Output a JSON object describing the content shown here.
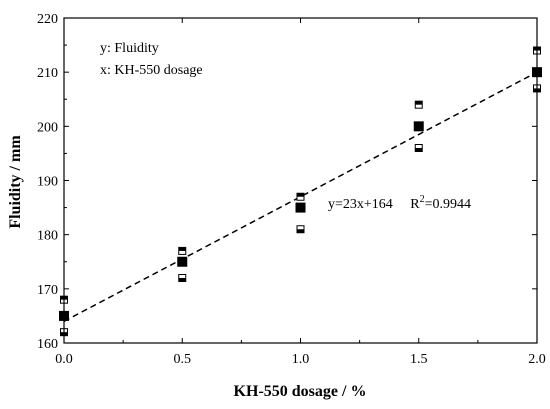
{
  "chart_data": {
    "type": "scatter",
    "title": "",
    "xlabel": "KH-550 dosage / %",
    "ylabel": "Fluidity / mm",
    "xlim": [
      0.0,
      2.0
    ],
    "ylim": [
      160,
      220
    ],
    "x_ticks": [
      "0.0",
      "0.5",
      "1.0",
      "1.5",
      "2.0"
    ],
    "y_ticks": [
      "160",
      "170",
      "180",
      "190",
      "200",
      "210",
      "220"
    ],
    "grid": false,
    "legend_lines": [
      "y: Fluidity",
      "x: KH-550 dosage"
    ],
    "equation_text": "y=23x+164",
    "r2_label": "R",
    "r2_exp": "2",
    "r2_value": "=0.9944",
    "series": [
      {
        "marker": "filled-square",
        "x": [
          0.0,
          0.5,
          1.0,
          1.5,
          2.0
        ],
        "y": [
          165,
          175,
          185,
          200,
          210
        ]
      },
      {
        "marker": "half-filled-square-upper",
        "x": [
          0.0,
          0.5,
          1.0,
          1.5,
          2.0
        ],
        "y": [
          168,
          177,
          187,
          204,
          214
        ]
      },
      {
        "marker": "half-filled-square-lower",
        "x": [
          0.0,
          0.5,
          1.0,
          1.5,
          2.0
        ],
        "y": [
          162,
          172,
          181,
          196,
          207
        ]
      }
    ],
    "fit_line": {
      "style": "dashed",
      "slope": 23,
      "intercept": 164,
      "x_range": [
        0.0,
        2.0
      ]
    }
  }
}
